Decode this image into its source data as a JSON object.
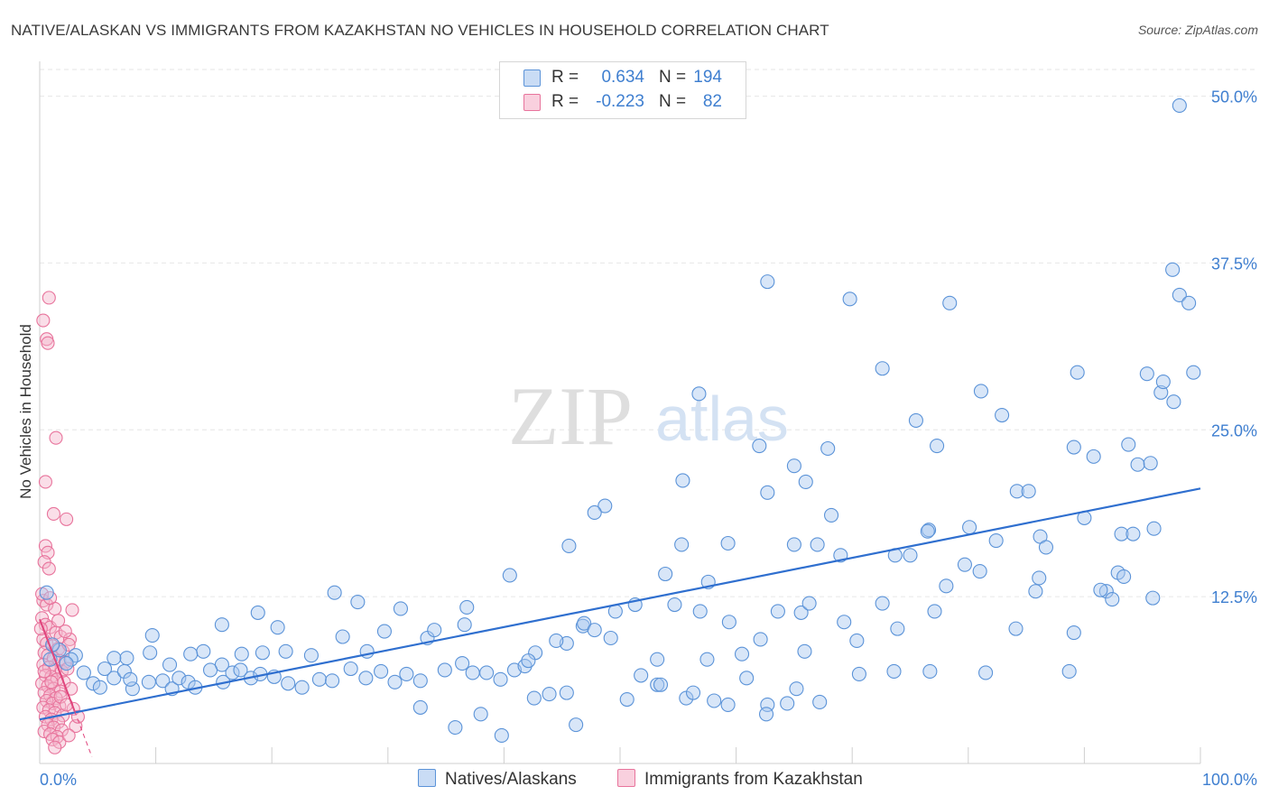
{
  "title": "NATIVE/ALASKAN VS IMMIGRANTS FROM KAZAKHSTAN NO VEHICLES IN HOUSEHOLD CORRELATION CHART",
  "source": "Source: ZipAtlas.com",
  "watermark": {
    "zip": "ZIP",
    "atlas": "atlas"
  },
  "legend": {
    "rows": [
      {
        "r_label": "R =",
        "r_value": "0.634",
        "n_label": "N =",
        "n_value": "194",
        "color": "#a9c8f0"
      },
      {
        "r_label": "R =",
        "r_value": "-0.223",
        "n_label": "N =",
        "n_value": "82",
        "color": "#f5b6cc"
      }
    ]
  },
  "bottom_legend": [
    "Natives/Alaskans",
    "Immigrants from Kazakhstan"
  ],
  "colors": {
    "blue_fill": "#a9c8f0",
    "blue_stroke": "#5b93d8",
    "blue_line": "#2f6fcf",
    "pink_fill": "#f5b6cc",
    "pink_stroke": "#e8749c",
    "pink_line": "#e0457d",
    "grid": "#e6e6e6",
    "tick_label": "#3f7fd0",
    "axis_text": "#333333"
  },
  "chart_data": {
    "type": "scatter",
    "xlabel": "",
    "ylabel": "No Vehicles in Household",
    "xlim": [
      0,
      100
    ],
    "ylim": [
      0,
      52
    ],
    "x_tick_labels": [
      "0.0%",
      "100.0%"
    ],
    "y_ticks": [
      12.5,
      25.0,
      37.5,
      50.0
    ],
    "y_tick_labels": [
      "12.5%",
      "25.0%",
      "37.5%",
      "50.0%"
    ],
    "grid": "horizontal dashed",
    "series": [
      {
        "name": "Natives/Alaskans",
        "color": "#a9c8f0",
        "trend": {
          "x0": 0,
          "y0": 3.3,
          "x1": 100,
          "y1": 20.6
        },
        "points": [
          [
            98.2,
            49.3
          ],
          [
            62.7,
            36.1
          ],
          [
            69.8,
            34.8
          ],
          [
            78.4,
            34.5
          ],
          [
            98.2,
            35.1
          ],
          [
            72.6,
            29.6
          ],
          [
            81.1,
            27.9
          ],
          [
            95.4,
            29.2
          ],
          [
            96.6,
            27.8
          ],
          [
            99.4,
            29.3
          ],
          [
            89.4,
            29.3
          ],
          [
            96.8,
            28.6
          ],
          [
            97.7,
            27.1
          ],
          [
            56.8,
            27.7
          ],
          [
            62.0,
            23.8
          ],
          [
            75.5,
            25.7
          ],
          [
            82.9,
            26.1
          ],
          [
            62.7,
            20.3
          ],
          [
            65.0,
            22.3
          ],
          [
            66.0,
            21.1
          ],
          [
            67.9,
            23.6
          ],
          [
            77.3,
            23.8
          ],
          [
            89.1,
            23.7
          ],
          [
            90.8,
            23.0
          ],
          [
            93.8,
            23.9
          ],
          [
            94.6,
            22.4
          ],
          [
            95.7,
            22.5
          ],
          [
            55.4,
            21.2
          ],
          [
            48.7,
            19.3
          ],
          [
            47.8,
            18.8
          ],
          [
            68.2,
            18.6
          ],
          [
            84.2,
            20.4
          ],
          [
            85.2,
            20.4
          ],
          [
            76.6,
            17.5
          ],
          [
            80.1,
            17.7
          ],
          [
            90.0,
            18.4
          ],
          [
            93.2,
            17.2
          ],
          [
            94.2,
            17.2
          ],
          [
            96.0,
            17.6
          ],
          [
            65.0,
            16.4
          ],
          [
            67.0,
            16.4
          ],
          [
            69.0,
            15.6
          ],
          [
            55.3,
            16.4
          ],
          [
            59.3,
            16.5
          ],
          [
            73.7,
            15.6
          ],
          [
            75.0,
            15.6
          ],
          [
            76.5,
            17.4
          ],
          [
            79.7,
            14.9
          ],
          [
            81.0,
            14.4
          ],
          [
            82.4,
            16.7
          ],
          [
            86.2,
            17.0
          ],
          [
            86.7,
            16.2
          ],
          [
            45.6,
            16.3
          ],
          [
            40.5,
            14.1
          ],
          [
            53.9,
            14.2
          ],
          [
            57.6,
            13.6
          ],
          [
            78.1,
            13.3
          ],
          [
            86.1,
            13.9
          ],
          [
            85.8,
            12.9
          ],
          [
            91.9,
            12.9
          ],
          [
            92.9,
            14.3
          ],
          [
            93.4,
            14.0
          ],
          [
            91.4,
            13.0
          ],
          [
            95.9,
            12.4
          ],
          [
            92.4,
            12.3
          ],
          [
            46.8,
            10.3
          ],
          [
            49.6,
            11.4
          ],
          [
            51.3,
            11.9
          ],
          [
            54.7,
            11.9
          ],
          [
            56.9,
            11.4
          ],
          [
            59.4,
            10.6
          ],
          [
            63.6,
            11.4
          ],
          [
            65.6,
            11.3
          ],
          [
            69.3,
            10.6
          ],
          [
            72.6,
            12.0
          ],
          [
            77.1,
            11.4
          ],
          [
            84.1,
            10.1
          ],
          [
            89.1,
            9.8
          ],
          [
            73.9,
            10.1
          ],
          [
            70.4,
            9.2
          ],
          [
            65.9,
            8.4
          ],
          [
            60.5,
            8.2
          ],
          [
            57.5,
            7.8
          ],
          [
            53.2,
            7.8
          ],
          [
            45.4,
            9.0
          ],
          [
            46.9,
            10.5
          ],
          [
            47.8,
            10.0
          ],
          [
            49.2,
            9.4
          ],
          [
            44.5,
            9.2
          ],
          [
            42.7,
            8.3
          ],
          [
            36.6,
            10.4
          ],
          [
            33.4,
            9.4
          ],
          [
            29.7,
            9.9
          ],
          [
            28.2,
            8.4
          ],
          [
            26.1,
            9.5
          ],
          [
            23.4,
            8.1
          ],
          [
            21.2,
            8.4
          ],
          [
            19.2,
            8.3
          ],
          [
            17.4,
            8.2
          ],
          [
            15.7,
            7.4
          ],
          [
            14.1,
            8.4
          ],
          [
            13.0,
            8.2
          ],
          [
            11.2,
            7.4
          ],
          [
            9.5,
            8.3
          ],
          [
            7.5,
            7.9
          ],
          [
            6.4,
            7.9
          ],
          [
            5.6,
            7.1
          ],
          [
            3.1,
            8.1
          ],
          [
            2.7,
            7.8
          ],
          [
            1.7,
            8.5
          ],
          [
            1.1,
            8.9
          ],
          [
            0.9,
            7.8
          ],
          [
            0.6,
            12.8
          ],
          [
            2.3,
            7.5
          ],
          [
            3.8,
            6.8
          ],
          [
            4.6,
            6.0
          ],
          [
            5.2,
            5.7
          ],
          [
            6.4,
            6.4
          ],
          [
            7.3,
            6.9
          ],
          [
            8.0,
            5.6
          ],
          [
            9.4,
            6.1
          ],
          [
            10.6,
            6.2
          ],
          [
            11.4,
            5.6
          ],
          [
            12.0,
            6.4
          ],
          [
            12.8,
            6.1
          ],
          [
            13.4,
            5.7
          ],
          [
            14.7,
            7.0
          ],
          [
            15.8,
            6.1
          ],
          [
            16.6,
            6.8
          ],
          [
            17.3,
            7.0
          ],
          [
            18.2,
            6.4
          ],
          [
            19.0,
            6.7
          ],
          [
            20.2,
            6.5
          ],
          [
            21.4,
            6.0
          ],
          [
            22.6,
            5.7
          ],
          [
            24.1,
            6.3
          ],
          [
            25.2,
            6.2
          ],
          [
            26.8,
            7.1
          ],
          [
            28.1,
            6.4
          ],
          [
            29.4,
            6.9
          ],
          [
            30.6,
            6.1
          ],
          [
            31.6,
            6.7
          ],
          [
            32.8,
            6.2
          ],
          [
            34.9,
            7.0
          ],
          [
            36.4,
            7.5
          ],
          [
            37.3,
            6.8
          ],
          [
            38.5,
            6.8
          ],
          [
            39.7,
            6.3
          ],
          [
            40.9,
            7.0
          ],
          [
            41.8,
            7.3
          ],
          [
            42.1,
            7.7
          ],
          [
            51.8,
            6.6
          ],
          [
            53.2,
            5.9
          ],
          [
            55.7,
            4.9
          ],
          [
            58.1,
            4.7
          ],
          [
            59.3,
            4.4
          ],
          [
            62.7,
            4.4
          ],
          [
            64.4,
            4.5
          ],
          [
            65.2,
            5.6
          ],
          [
            67.2,
            4.6
          ],
          [
            70.6,
            6.7
          ],
          [
            73.6,
            6.9
          ],
          [
            76.7,
            6.9
          ],
          [
            81.5,
            6.8
          ],
          [
            88.7,
            6.9
          ],
          [
            97.6,
            37.0
          ],
          [
            99.0,
            34.5
          ],
          [
            66.3,
            12.0
          ],
          [
            62.1,
            9.3
          ],
          [
            60.9,
            6.4
          ],
          [
            36.8,
            11.7
          ],
          [
            34.0,
            10.0
          ],
          [
            31.1,
            11.6
          ],
          [
            27.4,
            12.1
          ],
          [
            25.4,
            12.8
          ],
          [
            20.5,
            10.2
          ],
          [
            18.8,
            11.3
          ],
          [
            15.7,
            10.4
          ],
          [
            9.7,
            9.6
          ],
          [
            7.8,
            6.3
          ],
          [
            39.8,
            2.1
          ],
          [
            42.6,
            4.9
          ],
          [
            43.9,
            5.2
          ],
          [
            45.4,
            5.3
          ],
          [
            46.2,
            2.9
          ],
          [
            50.6,
            4.8
          ],
          [
            53.5,
            5.9
          ],
          [
            56.3,
            5.3
          ],
          [
            62.6,
            3.7
          ],
          [
            38.0,
            3.7
          ],
          [
            35.8,
            2.7
          ],
          [
            32.8,
            4.2
          ]
        ]
      },
      {
        "name": "Immigrants from Kazakhstan",
        "color": "#f5b6cc",
        "trend": {
          "x0": 0,
          "y0": 10.8,
          "x1": 4.5,
          "y1": 0.5
        },
        "points": [
          [
            0.3,
            33.2
          ],
          [
            0.8,
            34.9
          ],
          [
            0.6,
            31.8
          ],
          [
            0.7,
            31.5
          ],
          [
            1.4,
            24.4
          ],
          [
            0.5,
            21.1
          ],
          [
            1.2,
            18.7
          ],
          [
            2.3,
            18.3
          ],
          [
            0.5,
            16.3
          ],
          [
            0.7,
            15.8
          ],
          [
            0.4,
            15.1
          ],
          [
            0.8,
            14.6
          ],
          [
            0.3,
            12.2
          ],
          [
            0.6,
            11.9
          ],
          [
            1.3,
            11.6
          ],
          [
            2.8,
            11.5
          ],
          [
            0.2,
            10.9
          ],
          [
            0.5,
            10.4
          ],
          [
            0.9,
            10.2
          ],
          [
            1.4,
            9.8
          ],
          [
            1.8,
            9.5
          ],
          [
            2.6,
            9.3
          ],
          [
            0.3,
            9.3
          ],
          [
            0.6,
            9.0
          ],
          [
            1.1,
            8.8
          ],
          [
            1.6,
            8.6
          ],
          [
            2.0,
            8.4
          ],
          [
            0.4,
            8.3
          ],
          [
            0.7,
            8.1
          ],
          [
            1.2,
            7.9
          ],
          [
            1.7,
            7.7
          ],
          [
            2.2,
            7.6
          ],
          [
            0.3,
            7.4
          ],
          [
            0.8,
            7.2
          ],
          [
            1.3,
            7.0
          ],
          [
            1.9,
            6.9
          ],
          [
            0.5,
            6.6
          ],
          [
            1.0,
            6.5
          ],
          [
            1.5,
            6.3
          ],
          [
            2.1,
            6.1
          ],
          [
            0.2,
            6.0
          ],
          [
            0.7,
            5.8
          ],
          [
            1.2,
            5.6
          ],
          [
            1.8,
            5.4
          ],
          [
            0.4,
            5.3
          ],
          [
            0.9,
            5.1
          ],
          [
            1.4,
            4.9
          ],
          [
            0.6,
            4.7
          ],
          [
            1.1,
            4.5
          ],
          [
            1.7,
            4.3
          ],
          [
            0.3,
            4.2
          ],
          [
            0.8,
            4.0
          ],
          [
            1.3,
            3.8
          ],
          [
            2.0,
            3.6
          ],
          [
            0.5,
            3.5
          ],
          [
            1.0,
            3.3
          ],
          [
            1.6,
            3.1
          ],
          [
            0.7,
            2.9
          ],
          [
            1.2,
            2.7
          ],
          [
            1.9,
            2.5
          ],
          [
            0.4,
            2.4
          ],
          [
            0.9,
            2.2
          ],
          [
            1.5,
            2.0
          ],
          [
            1.1,
            1.8
          ],
          [
            1.7,
            1.6
          ],
          [
            1.3,
            1.2
          ],
          [
            2.4,
            7.1
          ],
          [
            2.7,
            5.6
          ],
          [
            2.9,
            4.1
          ],
          [
            3.1,
            2.8
          ],
          [
            2.5,
            2.1
          ],
          [
            3.3,
            3.5
          ],
          [
            0.2,
            12.7
          ],
          [
            0.9,
            12.4
          ],
          [
            1.6,
            10.7
          ],
          [
            2.2,
            9.9
          ],
          [
            2.5,
            8.9
          ],
          [
            0.1,
            10.1
          ],
          [
            0.4,
            6.9
          ],
          [
            1.0,
            6.1
          ],
          [
            1.8,
            5.0
          ],
          [
            2.3,
            4.4
          ]
        ]
      }
    ]
  }
}
